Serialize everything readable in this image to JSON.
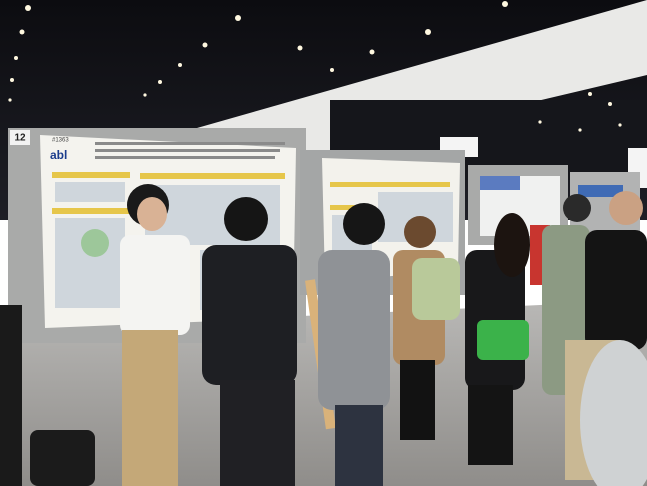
{
  "scene": {
    "board_number": "12",
    "poster_id": "#1363",
    "logo": "abl"
  }
}
